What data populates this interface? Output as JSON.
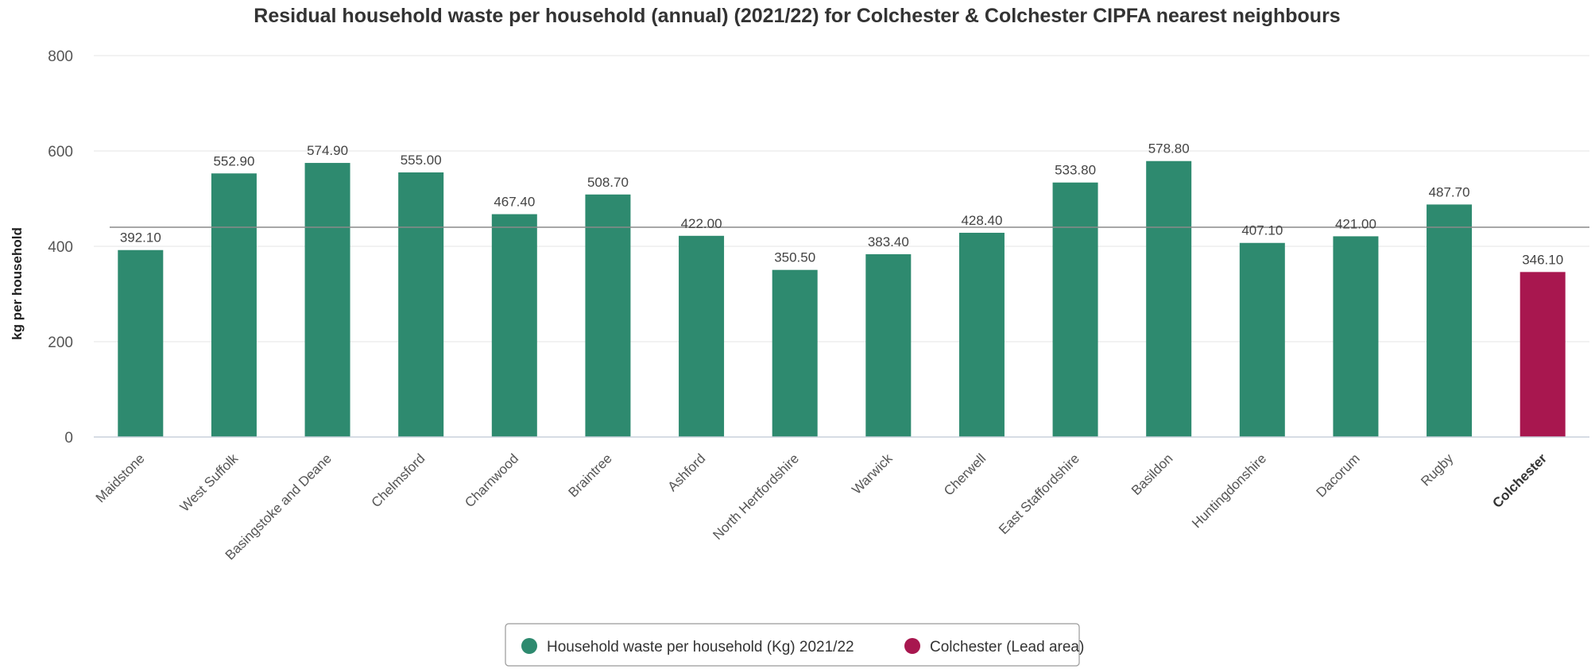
{
  "chart_data": {
    "type": "bar",
    "title": "Residual household waste per household (annual) (2021/22) for Colchester & Colchester CIPFA nearest neighbours",
    "xlabel": "",
    "ylabel": "kg per household",
    "ylim": [
      0,
      800
    ],
    "yticks": [
      0,
      200,
      400,
      600,
      800
    ],
    "grid": true,
    "legend_position": "bottom",
    "categories": [
      "Maidstone",
      "West Suffolk",
      "Basingstoke and Deane",
      "Chelmsford",
      "Charnwood",
      "Braintree",
      "Ashford",
      "North Hertfordshire",
      "Warwick",
      "Cherwell",
      "East Staffordshire",
      "Basildon",
      "Huntingdonshire",
      "Dacorum",
      "Rugby",
      "Colchester"
    ],
    "values": [
      392.1,
      552.9,
      574.9,
      555.0,
      467.4,
      508.7,
      422.0,
      350.5,
      383.4,
      428.4,
      533.8,
      578.8,
      407.1,
      421.0,
      487.7,
      346.1
    ],
    "value_labels": [
      "392.10",
      "552.90",
      "574.90",
      "555.00",
      "467.40",
      "508.70",
      "422.00",
      "350.50",
      "383.40",
      "428.40",
      "533.80",
      "578.80",
      "407.10",
      "421.00",
      "487.70",
      "346.10"
    ],
    "lead_category": "Colchester",
    "reference_line": 440,
    "series": [
      {
        "name": "Household waste per household (Kg) 2021/22",
        "color": "#2e8a6f"
      },
      {
        "name": "Colchester (Lead area)",
        "color": "#a8174f"
      }
    ]
  }
}
